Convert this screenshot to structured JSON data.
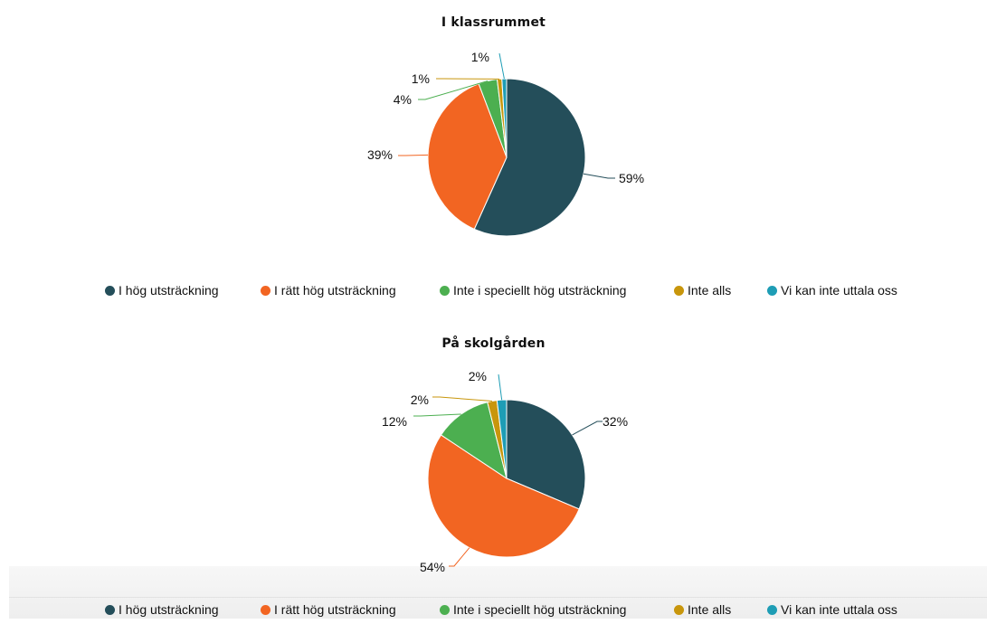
{
  "colors": {
    "I hög utsträckning": "#244e5a",
    "I rätt hög utsträckning": "#f26522",
    "Inte i speciellt hög utsträckning": "#4caf50",
    "Inte alls": "#c8960c",
    "Vi kan inte uttala oss": "#1e9db5"
  },
  "chart_data": [
    {
      "type": "pie",
      "title": "I klassrummet",
      "categories": [
        "I hög utsträckning",
        "I rätt hög utsträckning",
        "Inte i speciellt hög utsträckning",
        "Inte alls",
        "Vi kan inte uttala oss"
      ],
      "values": [
        59,
        39,
        4,
        1,
        1
      ],
      "labels": [
        "59%",
        "39%",
        "4%",
        "1%",
        "1%"
      ],
      "legend": "bottom"
    },
    {
      "type": "pie",
      "title": "På skolgården",
      "categories": [
        "I hög utsträckning",
        "I rätt hög utsträckning",
        "Inte i speciellt hög utsträckning",
        "Inte alls",
        "Vi kan inte uttala oss"
      ],
      "values": [
        32,
        54,
        12,
        2,
        2
      ],
      "labels": [
        "32%",
        "54%",
        "12%",
        "2%",
        "2%"
      ],
      "legend": "bottom"
    }
  ]
}
